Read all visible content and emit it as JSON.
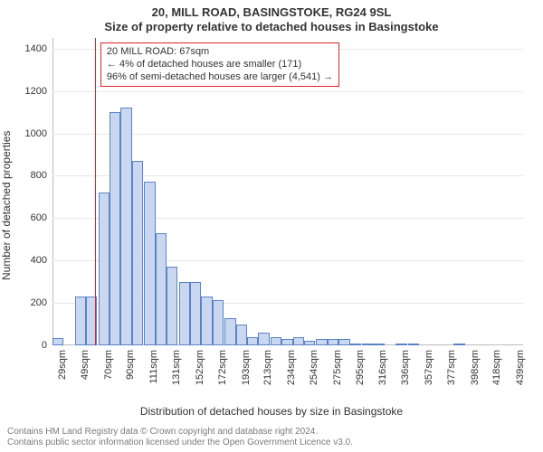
{
  "title_main": "20, MILL ROAD, BASINGSTOKE, RG24 9SL",
  "title_sub": "Size of property relative to detached houses in Basingstoke",
  "ylabel": "Number of detached properties",
  "xlabel": "Distribution of detached houses by size in Basingstoke",
  "annotation": {
    "line1": "20 MILL ROAD: 67sqm",
    "line2": "← 4% of detached houses are smaller (171)",
    "line3": "96% of semi-detached houses are larger (4,541) →"
  },
  "footer_line1": "Contains HM Land Registry data © Crown copyright and database right 2024.",
  "footer_line2": "Contains public sector information licensed under the Open Government Licence v3.0.",
  "chart": {
    "type": "histogram",
    "background_color": "#ffffff",
    "grid_color": "#e8e8e8",
    "axis_color": "#bbbbbb",
    "bar_fill": "#c9d7f0",
    "bar_stroke": "#5b83c4",
    "marker_color": "#d62728",
    "marker_x_sqm": 67,
    "ymax": 1450,
    "ytick_step": 200,
    "yticks": [
      0,
      200,
      400,
      600,
      800,
      1000,
      1200,
      1400
    ],
    "xmin_sqm": 29,
    "xmax_sqm": 450,
    "xtick_sqm": [
      29,
      49,
      70,
      90,
      111,
      131,
      152,
      172,
      193,
      213,
      234,
      254,
      275,
      295,
      316,
      336,
      357,
      377,
      398,
      418,
      439
    ],
    "xtick_labels": [
      "29sqm",
      "49sqm",
      "70sqm",
      "90sqm",
      "111sqm",
      "131sqm",
      "152sqm",
      "172sqm",
      "193sqm",
      "213sqm",
      "234sqm",
      "254sqm",
      "275sqm",
      "295sqm",
      "316sqm",
      "336sqm",
      "357sqm",
      "377sqm",
      "398sqm",
      "418sqm",
      "439sqm"
    ],
    "bars_sqm_value": [
      [
        29,
        35
      ],
      [
        39,
        0
      ],
      [
        49,
        230
      ],
      [
        59,
        230
      ],
      [
        70,
        720
      ],
      [
        80,
        1100
      ],
      [
        90,
        1120
      ],
      [
        100,
        870
      ],
      [
        111,
        770
      ],
      [
        121,
        530
      ],
      [
        131,
        370
      ],
      [
        142,
        300
      ],
      [
        152,
        300
      ],
      [
        162,
        230
      ],
      [
        172,
        215
      ],
      [
        183,
        130
      ],
      [
        193,
        100
      ],
      [
        203,
        40
      ],
      [
        213,
        60
      ],
      [
        224,
        40
      ],
      [
        234,
        30
      ],
      [
        244,
        40
      ],
      [
        254,
        20
      ],
      [
        265,
        30
      ],
      [
        275,
        30
      ],
      [
        285,
        30
      ],
      [
        295,
        5
      ],
      [
        306,
        10
      ],
      [
        316,
        5
      ],
      [
        326,
        0
      ],
      [
        336,
        5
      ],
      [
        347,
        5
      ],
      [
        357,
        0
      ],
      [
        367,
        0
      ],
      [
        377,
        0
      ],
      [
        388,
        5
      ],
      [
        398,
        0
      ],
      [
        408,
        0
      ],
      [
        418,
        0
      ],
      [
        429,
        0
      ],
      [
        439,
        0
      ]
    ],
    "bar_width_sqm": 10,
    "title_fontsize": 13,
    "label_fontsize": 12,
    "tick_fontsize": 11,
    "annotation_fontsize": 11
  }
}
